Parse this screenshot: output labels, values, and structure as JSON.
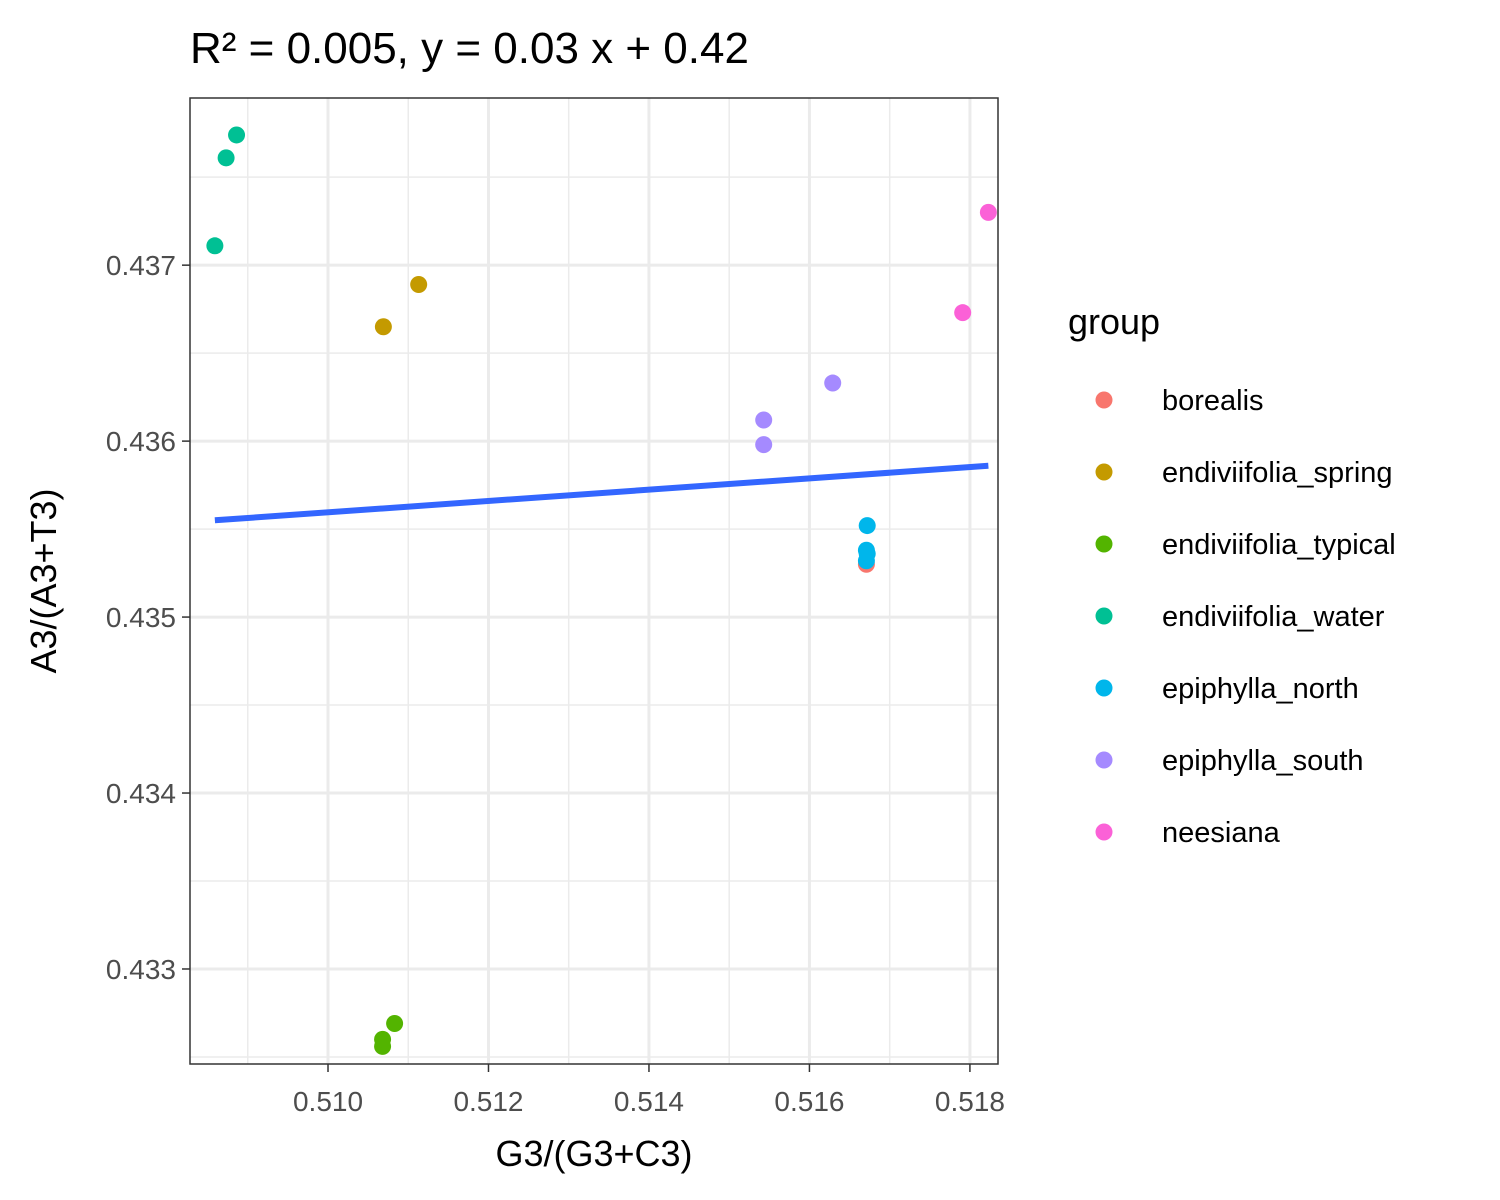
{
  "chart_data": {
    "type": "scatter",
    "title": "R² = 0.005, y = 0.03 x + 0.42",
    "xlabel": "G3/(G3+C3)",
    "ylabel": "A3/(A3+T3)",
    "xlim": [
      0.50828,
      0.51835
    ],
    "ylim": [
      0.43246,
      0.43795
    ],
    "x_ticks": [
      "0.510",
      "0.512",
      "0.514",
      "0.516",
      "0.518"
    ],
    "y_ticks": [
      "0.433",
      "0.434",
      "0.435",
      "0.436",
      "0.437"
    ],
    "grid": true,
    "legend_title": "group",
    "legend_position": "right",
    "series": [
      {
        "name": "borealis",
        "color": "#F8766D",
        "points": [
          [
            0.51671,
            0.4353
          ]
        ]
      },
      {
        "name": "endiviifolia_spring",
        "color": "#C49A00",
        "points": [
          [
            0.51069,
            0.43665
          ],
          [
            0.51113,
            0.43689
          ]
        ]
      },
      {
        "name": "endiviifolia_typical",
        "color": "#53B400",
        "points": [
          [
            0.51068,
            0.43256
          ],
          [
            0.51068,
            0.4326
          ],
          [
            0.51083,
            0.43269
          ]
        ]
      },
      {
        "name": "endiviifolia_water",
        "color": "#00C094",
        "points": [
          [
            0.50859,
            0.43711
          ],
          [
            0.50873,
            0.43761
          ],
          [
            0.50886,
            0.43774
          ]
        ]
      },
      {
        "name": "epiphylla_north",
        "color": "#00B6EB",
        "points": [
          [
            0.51672,
            0.43552
          ],
          [
            0.51671,
            0.43538
          ],
          [
            0.51671,
            0.43532
          ],
          [
            0.51672,
            0.43536
          ]
        ]
      },
      {
        "name": "epiphylla_south",
        "color": "#A58AFF",
        "points": [
          [
            0.51543,
            0.43598
          ],
          [
            0.51543,
            0.43612
          ],
          [
            0.51629,
            0.43633
          ]
        ]
      },
      {
        "name": "neesiana",
        "color": "#FB61D7",
        "points": [
          [
            0.51791,
            0.43673
          ],
          [
            0.51823,
            0.4373
          ]
        ]
      }
    ],
    "trend_line": {
      "color": "#3366FF",
      "x": [
        0.50859,
        0.51823
      ],
      "y": [
        0.43555,
        0.43586
      ]
    }
  }
}
